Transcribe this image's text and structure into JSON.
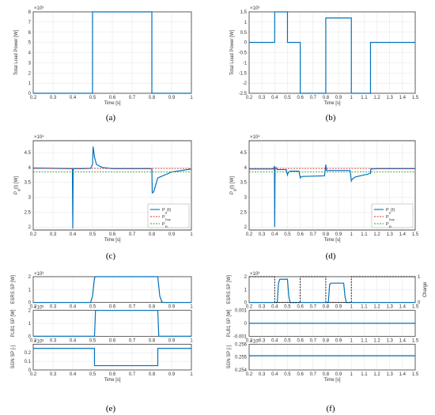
{
  "chart_data": [
    {
      "id": "a",
      "caption": "(a)",
      "type": "line",
      "ylabel": "Total Load Power [W]",
      "xlabel": "Time [s]",
      "exp": "×10³",
      "xlim": [
        0.2,
        1
      ],
      "ylim": [
        0,
        8
      ],
      "xticks": [
        "0.2",
        "0.3",
        "0.4",
        "0.5",
        "0.6",
        "0.7",
        "0.8",
        "0.9",
        "1"
      ],
      "yticks": [
        "0",
        "1",
        "2",
        "3",
        "4",
        "5",
        "6",
        "7",
        "8"
      ],
      "grid": true,
      "lineColor": "#0072bd",
      "series": [
        {
          "x": [
            0.2,
            0.5,
            0.5,
            0.8,
            0.8,
            1.0
          ],
          "y": [
            0,
            0,
            8,
            8,
            0,
            0
          ]
        }
      ]
    },
    {
      "id": "b",
      "caption": "(b)",
      "type": "line",
      "ylabel": "Total Load Power [W]",
      "xlabel": "Time [s]",
      "exp": "×10³",
      "xlim": [
        0.2,
        1.5
      ],
      "ylim": [
        -2.5,
        1.5
      ],
      "xticks": [
        "0.2",
        "0.3",
        "0.4",
        "0.5",
        "0.6",
        "0.7",
        "0.8",
        "0.9",
        "1",
        "1.1",
        "1.2",
        "1.3",
        "1.4",
        "1.5"
      ],
      "yticks": [
        "-2.5",
        "-2",
        "-1.5",
        "-1",
        "-0.5",
        "0",
        "0.5",
        "1",
        "1.5"
      ],
      "grid": true,
      "lineColor": "#0072bd",
      "series": [
        {
          "x": [
            0.2,
            0.4,
            0.4,
            0.5,
            0.5,
            0.6,
            0.6,
            0.8,
            0.8,
            1.0,
            1.0,
            1.15,
            1.15,
            1.5
          ],
          "y": [
            0,
            0,
            1.5,
            1.5,
            0,
            0,
            -2.5,
            -2.5,
            1.2,
            1.2,
            -2.5,
            -2.5,
            0,
            0
          ]
        }
      ]
    },
    {
      "id": "c",
      "caption": "(c)",
      "type": "line",
      "ylabel": "P_g(t) [W]",
      "xlabel": "Time [s]",
      "exp": "×10⁴",
      "xlim": [
        0.2,
        1
      ],
      "ylim": [
        1.9,
        4.9
      ],
      "xticks": [
        "0.2",
        "0.3",
        "0.4",
        "0.5",
        "0.6",
        "0.7",
        "0.8",
        "0.9",
        "1"
      ],
      "yticks": [
        "2",
        "2.5",
        "3",
        "3.5",
        "4",
        "4.5"
      ],
      "grid": true,
      "series": [
        {
          "name": "P_g(t)",
          "style": "solid",
          "color": "#0072bd",
          "x": [
            0.2,
            0.3,
            0.39,
            0.398,
            0.4,
            0.402,
            0.405,
            0.45,
            0.49,
            0.5,
            0.503,
            0.51,
            0.52,
            0.55,
            0.6,
            0.7,
            0.79,
            0.8,
            0.802,
            0.805,
            0.81,
            0.83,
            0.9,
            1.0
          ],
          "y": [
            3.98,
            3.97,
            3.96,
            3.96,
            1.95,
            3.93,
            3.96,
            3.96,
            3.97,
            4.1,
            4.7,
            4.35,
            4.1,
            4.0,
            3.96,
            3.96,
            3.96,
            3.95,
            3.15,
            3.15,
            3.2,
            3.65,
            3.85,
            3.95
          ]
        },
        {
          "name": "P_Day",
          "style": "dashed",
          "color": "#d62728",
          "x": [
            0.2,
            1.0
          ],
          "y": [
            3.97,
            3.97
          ]
        },
        {
          "name": "P_Er",
          "style": "dashed",
          "color": "#2ca02c",
          "x": [
            0.2,
            1.0
          ],
          "y": [
            3.85,
            3.85
          ]
        }
      ],
      "legend": [
        "P_g(t)",
        "P_Day",
        "P_Er"
      ],
      "legendPos": "bottom-right"
    },
    {
      "id": "d",
      "caption": "(d)",
      "type": "line",
      "ylabel": "P_g(t) [W]",
      "xlabel": "Time [s]",
      "exp": "×10⁴",
      "xlim": [
        0.2,
        1.5
      ],
      "ylim": [
        1.9,
        4.9
      ],
      "xticks": [
        "0.2",
        "0.3",
        "0.4",
        "0.5",
        "0.6",
        "0.7",
        "0.8",
        "0.9",
        "1",
        "1.1",
        "1.2",
        "1.3",
        "1.4",
        "1.5"
      ],
      "yticks": [
        "2",
        "2.5",
        "3",
        "3.5",
        "4",
        "4.5"
      ],
      "grid": true,
      "series": [
        {
          "name": "P_g(t)",
          "style": "solid",
          "color": "#0072bd",
          "x": [
            0.2,
            0.39,
            0.398,
            0.4,
            0.403,
            0.41,
            0.42,
            0.49,
            0.5,
            0.505,
            0.52,
            0.59,
            0.6,
            0.605,
            0.62,
            0.79,
            0.8,
            0.805,
            0.82,
            0.99,
            1.0,
            1.005,
            1.03,
            1.1,
            1.15,
            1.152,
            1.2,
            1.3,
            1.5
          ],
          "y": [
            3.95,
            3.95,
            4.05,
            2.0,
            3.95,
            4.0,
            3.93,
            3.93,
            3.75,
            3.82,
            3.88,
            3.88,
            3.65,
            3.68,
            3.7,
            3.72,
            4.1,
            3.9,
            3.9,
            3.9,
            3.55,
            3.6,
            3.68,
            3.75,
            3.8,
            3.95,
            3.96,
            3.96,
            3.96
          ]
        },
        {
          "name": "P_Day",
          "style": "dashed",
          "color": "#d62728",
          "x": [
            0.2,
            1.5
          ],
          "y": [
            3.97,
            3.97
          ]
        },
        {
          "name": "P_Er",
          "style": "dashed",
          "color": "#2ca02c",
          "x": [
            0.2,
            1.5
          ],
          "y": [
            3.85,
            3.85
          ]
        }
      ],
      "legend": [
        "P_g(t)",
        "P_Day",
        "P_Er"
      ],
      "legendPos": "bottom-right"
    },
    {
      "id": "e",
      "caption": "(e)",
      "type": "line",
      "stacked": true,
      "xlabel": "Time [s]",
      "xlim": [
        0.2,
        1
      ],
      "xticks": [
        "0.2",
        "0.3",
        "0.4",
        "0.5",
        "0.6",
        "0.7",
        "0.8",
        "0.9",
        "1"
      ],
      "panels": [
        {
          "ylabel": "ESRS SP [W]",
          "exp": "×10³",
          "ylim": [
            0,
            2
          ],
          "yticks": [
            "0",
            "1",
            "2"
          ],
          "series": [
            {
              "x": [
                0.2,
                0.49,
                0.5,
                0.51,
                0.515,
                0.83,
                0.84,
                0.845,
                0.85,
                0.86,
                1.0
              ],
              "y": [
                0,
                0,
                0.5,
                1.9,
                2,
                2,
                0.5,
                0.3,
                0.05,
                0,
                0
              ]
            }
          ]
        },
        {
          "ylabel": "PLB1 SP [W]",
          "exp": "×10³",
          "ylim": [
            0,
            2
          ],
          "yticks": [
            "0",
            "1",
            "2"
          ],
          "series": [
            {
              "x": [
                0.2,
                0.51,
                0.515,
                0.83,
                0.835,
                1.0
              ],
              "y": [
                0,
                0,
                2,
                2,
                0,
                0
              ]
            }
          ]
        },
        {
          "ylabel": "SGN SP [-]",
          "exp": "×10³",
          "ylim": [
            0,
            0.3
          ],
          "yticks": [
            "0",
            "0.1",
            "0.2"
          ],
          "series": [
            {
              "x": [
                0.2,
                0.51,
                0.51,
                0.83,
                0.83,
                1.0
              ],
              "y": [
                0.25,
                0.25,
                0.05,
                0.05,
                0.25,
                0.25
              ]
            }
          ]
        }
      ]
    },
    {
      "id": "f",
      "caption": "(f)",
      "type": "line",
      "stacked": true,
      "xlabel": "Time [s]",
      "xlim": [
        0.2,
        1.5
      ],
      "xticks": [
        "0.2",
        "0.3",
        "0.4",
        "0.5",
        "0.6",
        "0.7",
        "0.8",
        "0.9",
        "1",
        "1.1",
        "1.2",
        "1.3",
        "1.4",
        "1.5"
      ],
      "panels": [
        {
          "ylabel": "ESRS SP [W]",
          "ylabelColor": "#0072bd",
          "exp": "×10³",
          "ylim": [
            0,
            2
          ],
          "yticks": [
            "0",
            "1",
            "2"
          ],
          "y2label": "Charge",
          "y2lim": [
            0,
            1
          ],
          "y2ticks": [
            "0",
            "1"
          ],
          "series": [
            {
              "x": [
                0.2,
                0.42,
                0.43,
                0.44,
                0.5,
                0.51,
                0.52,
                0.82,
                0.83,
                0.84,
                0.94,
                0.95,
                0.96,
                1.5
              ],
              "y": [
                0,
                0,
                1.5,
                1.8,
                1.8,
                0.5,
                0,
                0,
                1.4,
                1.5,
                1.5,
                0.5,
                0,
                0
              ]
            }
          ],
          "series2": [
            {
              "style": "dashed",
              "color": "#000",
              "x": [
                0.2,
                0.4,
                0.4,
                0.6,
                0.6,
                0.8,
                0.8,
                1.0,
                1.0,
                1.5
              ],
              "y": [
                1,
                1,
                0,
                0,
                1,
                1,
                0,
                0,
                1,
                1
              ]
            }
          ]
        },
        {
          "ylabel": "PLB1 SP [W]",
          "ylim": [
            -0.001,
            0.001
          ],
          "yticks": [
            "-0.001",
            "0",
            "0.001"
          ],
          "series": [
            {
              "x": [
                0.2,
                1.5
              ],
              "y": [
                0,
                0
              ]
            }
          ]
        },
        {
          "ylabel": "SGN SP [-]",
          "exp": "×10³",
          "ylim": [
            0.254,
            0.256
          ],
          "yticks": [
            "0.254",
            "0.255",
            "0.256"
          ],
          "series": [
            {
              "x": [
                0.2,
                1.5
              ],
              "y": [
                0.2551,
                0.2551
              ]
            }
          ]
        }
      ]
    }
  ]
}
